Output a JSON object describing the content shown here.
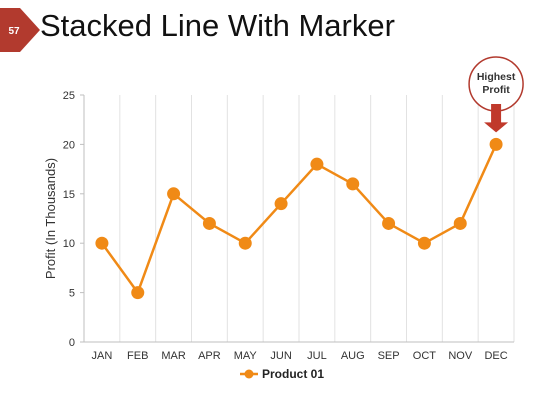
{
  "slide": {
    "number": "57",
    "title": "Stacked Line With Marker"
  },
  "colors": {
    "badge": "#b23a2e",
    "series": "#f08a16",
    "callout_border": "#b23a2e",
    "callout_arrow": "#c0392b",
    "grid": "#e2e2e2"
  },
  "callout": {
    "line1": "Highest",
    "line2": "Profit",
    "target_category": "DEC"
  },
  "chart_data": {
    "type": "line",
    "categories": [
      "JAN",
      "FEB",
      "MAR",
      "APR",
      "MAY",
      "JUN",
      "JUL",
      "AUG",
      "SEP",
      "OCT",
      "NOV",
      "DEC"
    ],
    "series": [
      {
        "name": "Product 01",
        "values": [
          10,
          5,
          15,
          12,
          10,
          14,
          18,
          16,
          12,
          10,
          12,
          20
        ]
      }
    ],
    "title": "",
    "xlabel": "",
    "ylabel": "Profit (In Thousands)",
    "ylim": [
      0,
      25
    ],
    "yticks": [
      0,
      5,
      10,
      15,
      20,
      25
    ],
    "grid": "vertical",
    "markers": true,
    "legend": "bottom"
  }
}
